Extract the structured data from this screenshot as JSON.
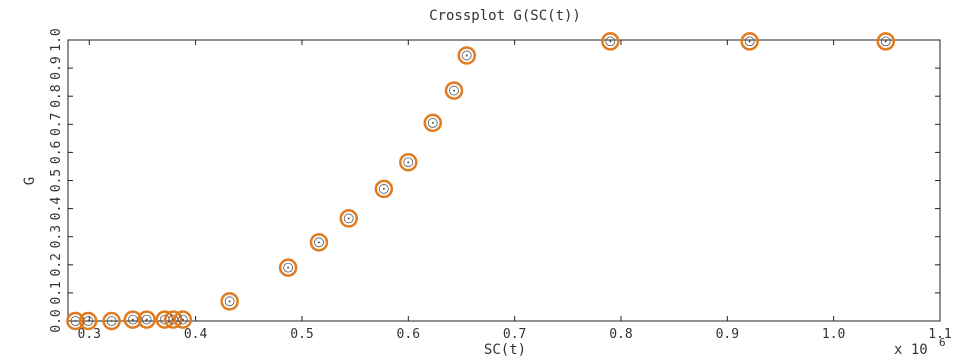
{
  "chart_data": {
    "type": "scatter",
    "title": "Crossplot G(SC(t))",
    "xlabel": "SC(t)",
    "ylabel": "G",
    "x_multiplier_label": "x 10",
    "x_multiplier_exponent": "6",
    "xlim": [
      0.28,
      1.1
    ],
    "ylim": [
      0.0,
      1.0
    ],
    "x_ticks": [
      0.3,
      0.4,
      0.5,
      0.6,
      0.7,
      0.8,
      0.9,
      1.0,
      1.1
    ],
    "x_tick_labels": [
      "0.3",
      "0.4",
      "0.5",
      "0.6",
      "0.7",
      "0.8",
      "0.9",
      "1.0",
      "1.1"
    ],
    "y_ticks": [
      0.0,
      0.1,
      0.2,
      0.3,
      0.4,
      0.5,
      0.6,
      0.7,
      0.8,
      0.9,
      1.0
    ],
    "y_tick_labels": [
      "0.0",
      "0.1",
      "0.2",
      "0.3",
      "0.4",
      "0.5",
      "0.6",
      "0.7",
      "0.8",
      "0.9",
      "1.0"
    ],
    "grid": false,
    "marker_color": "#e07b1f",
    "points": [
      {
        "x": 0.287,
        "y": 0.0
      },
      {
        "x": 0.299,
        "y": 0.0
      },
      {
        "x": 0.321,
        "y": 0.0
      },
      {
        "x": 0.341,
        "y": 0.005
      },
      {
        "x": 0.354,
        "y": 0.005
      },
      {
        "x": 0.371,
        "y": 0.005
      },
      {
        "x": 0.379,
        "y": 0.005
      },
      {
        "x": 0.388,
        "y": 0.005
      },
      {
        "x": 0.432,
        "y": 0.07
      },
      {
        "x": 0.487,
        "y": 0.19
      },
      {
        "x": 0.516,
        "y": 0.28
      },
      {
        "x": 0.544,
        "y": 0.365
      },
      {
        "x": 0.577,
        "y": 0.47
      },
      {
        "x": 0.6,
        "y": 0.565
      },
      {
        "x": 0.623,
        "y": 0.705
      },
      {
        "x": 0.643,
        "y": 0.82
      },
      {
        "x": 0.655,
        "y": 0.945
      },
      {
        "x": 0.79,
        "y": 0.995
      },
      {
        "x": 0.921,
        "y": 0.995
      },
      {
        "x": 1.049,
        "y": 0.995
      }
    ]
  }
}
